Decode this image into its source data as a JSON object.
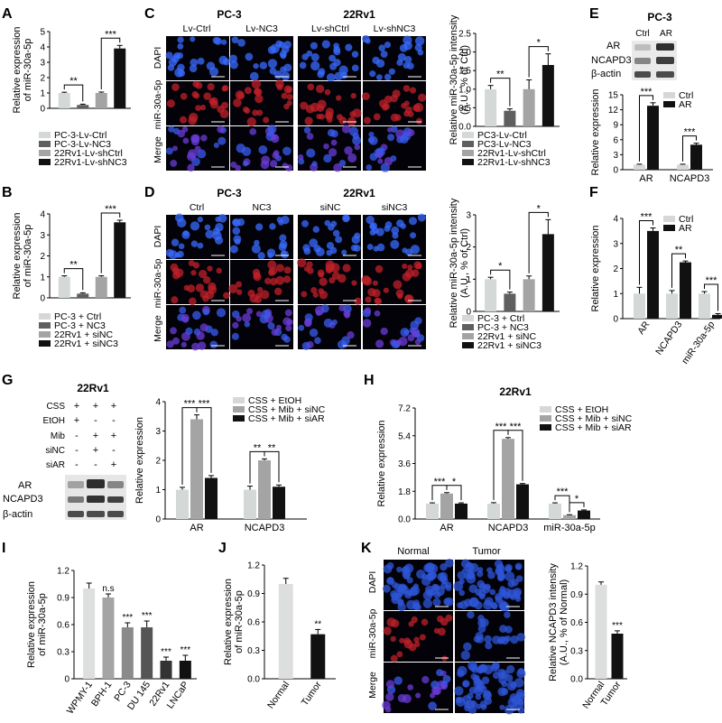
{
  "colors": {
    "ctrl_light": "#d4d8d6",
    "knock_dark": "#5f5f5f",
    "mid_gray": "#a4a4a4",
    "black": "#111111",
    "normal": "#dcdfdd"
  },
  "panels": {
    "A": {
      "label": "A"
    },
    "B": {
      "label": "B"
    },
    "C": {
      "label": "C",
      "cell_lines": [
        "PC-3",
        "22Rv1"
      ],
      "columns": [
        "Lv-Ctrl",
        "Lv-NC3",
        "Lv-shCtrl",
        "Lv-shNC3"
      ],
      "rows": [
        "DAPI",
        "miR-30a-5p",
        "Merge"
      ]
    },
    "D": {
      "label": "D",
      "cell_lines": [
        "PC-3",
        "22Rv1"
      ],
      "columns": [
        "Ctrl",
        "NC3",
        "siNC",
        "siNC3"
      ],
      "rows": [
        "DAPI",
        "miR-30a-5p",
        "Merge"
      ]
    },
    "E": {
      "label": "E",
      "cell_line": "PC-3",
      "blot_lanes": [
        "Ctrl",
        "AR"
      ],
      "blot_rows": [
        "AR",
        "NCAPD3",
        "β-actin"
      ]
    },
    "F": {
      "label": "F"
    },
    "G": {
      "label": "G",
      "cell_line": "22Rv1",
      "treatments": [
        {
          "name": "CSS",
          "signs": [
            "+",
            "+",
            "+"
          ]
        },
        {
          "name": "EtOH",
          "signs": [
            "+",
            "-",
            "-"
          ]
        },
        {
          "name": "Mib",
          "signs": [
            "-",
            "+",
            "+"
          ]
        },
        {
          "name": "siNC",
          "signs": [
            "-",
            "+",
            "-"
          ]
        },
        {
          "name": "siAR",
          "signs": [
            "-",
            "-",
            "+"
          ]
        }
      ],
      "blot_rows": [
        "AR",
        "NCAPD3",
        "β-actin"
      ]
    },
    "H": {
      "label": "H",
      "cell_line": "22Rv1"
    },
    "I": {
      "label": "I"
    },
    "J": {
      "label": "J"
    },
    "K": {
      "label": "K",
      "columns": [
        "Normal",
        "Tumor"
      ],
      "rows": [
        "DAPI",
        "miR-30a-5p",
        "Merge"
      ]
    }
  },
  "chart_data": [
    {
      "id": "A",
      "type": "bar",
      "ylabel": "Relative expression\nof miR-30a-5p",
      "ylim": [
        0,
        5
      ],
      "yticks": [
        0,
        1,
        2,
        3,
        4,
        5
      ],
      "categories": [
        "PC-3-Lv-Ctrl",
        "PC-3-Lv-NC3",
        "22Rv1-Lv-shCtrl",
        "22Rv1-Lv-shNC3"
      ],
      "values": [
        1.0,
        0.22,
        1.0,
        3.9
      ],
      "errors": [
        0.05,
        0.05,
        0.06,
        0.2
      ],
      "colors": [
        "#d4d8d6",
        "#5f5f5f",
        "#a4a4a4",
        "#111111"
      ],
      "legend": [
        "PC-3-Lv-Ctrl",
        "PC-3-Lv-NC3",
        "22Rv1-Lv-shCtrl",
        "22Rv1-Lv-shNC3"
      ],
      "significance": [
        {
          "bars": [
            0,
            1
          ],
          "label": "**"
        },
        {
          "bars": [
            2,
            3
          ],
          "label": "***"
        }
      ]
    },
    {
      "id": "B",
      "type": "bar",
      "ylabel": "Relative expression\nof miR-30a-5p",
      "ylim": [
        0,
        4
      ],
      "yticks": [
        0,
        1,
        2,
        3,
        4
      ],
      "categories": [
        "PC-3 + Ctrl",
        "PC-3 + NC3",
        "22Rv1 + siNC",
        "22Rv1 + siNC3"
      ],
      "values": [
        1.0,
        0.2,
        1.0,
        3.6
      ],
      "errors": [
        0.05,
        0.04,
        0.05,
        0.1
      ],
      "colors": [
        "#d4d8d6",
        "#5f5f5f",
        "#a4a4a4",
        "#111111"
      ],
      "legend": [
        "PC-3 + Ctrl",
        "PC-3 + NC3",
        "22Rv1 + siNC",
        "22Rv1 + siNC3"
      ],
      "significance": [
        {
          "bars": [
            0,
            1
          ],
          "label": "**"
        },
        {
          "bars": [
            2,
            3
          ],
          "label": "***"
        }
      ]
    },
    {
      "id": "C",
      "type": "bar",
      "ylabel": "Relative miR-30a-5p intensity\n(A.U., % of Ctrl)",
      "ylim": [
        0,
        2.5
      ],
      "yticks": [
        0.0,
        0.5,
        1.0,
        1.5,
        2.0,
        2.5
      ],
      "categories": [
        "PC3-Lv-Ctrl",
        "PC3-Lv-NC3",
        "22Rv1-Lv-shCtrl",
        "22Rv1-Lv-shNC3"
      ],
      "values": [
        1.0,
        0.42,
        1.0,
        1.65
      ],
      "errors": [
        0.1,
        0.05,
        0.25,
        0.3
      ],
      "colors": [
        "#d4d8d6",
        "#5f5f5f",
        "#a4a4a4",
        "#111111"
      ],
      "legend": [
        "PC3-Lv-Ctrl",
        "PC3-Lv-NC3",
        "22Rv1-Lv-shCtrl",
        "22Rv1-Lv-shNC3"
      ],
      "significance": [
        {
          "bars": [
            0,
            1
          ],
          "label": "**"
        },
        {
          "bars": [
            2,
            3
          ],
          "label": "*"
        }
      ]
    },
    {
      "id": "D",
      "type": "bar",
      "ylabel": "Relative miR-30a-5p intensity\n(A.U., % of Ctrl)",
      "ylim": [
        0,
        3
      ],
      "yticks": [
        0,
        1,
        2,
        3
      ],
      "categories": [
        "PC-3 + Ctrl",
        "PC-3 + NC3",
        "22Rv1 + siNC",
        "22Rv1 + siNC3"
      ],
      "values": [
        1.0,
        0.55,
        1.0,
        2.4
      ],
      "errors": [
        0.06,
        0.05,
        0.1,
        0.45
      ],
      "colors": [
        "#d4d8d6",
        "#5f5f5f",
        "#a4a4a4",
        "#111111"
      ],
      "legend": [
        "PC-3 + Ctrl",
        "PC-3 + NC3",
        "22Rv1 + siNC",
        "22Rv1 + siNC3"
      ],
      "significance": [
        {
          "bars": [
            0,
            1
          ],
          "label": "*"
        },
        {
          "bars": [
            2,
            3
          ],
          "label": "*"
        }
      ]
    },
    {
      "id": "E",
      "type": "bar",
      "ylabel": "Relative expression",
      "ylim": [
        0,
        15
      ],
      "yticks": [
        0,
        3,
        6,
        9,
        12,
        15
      ],
      "categories": [
        "AR",
        "NCAPD3"
      ],
      "series": [
        {
          "name": "Ctrl",
          "values": [
            1.0,
            1.0
          ],
          "errors": [
            0.1,
            0.1
          ],
          "color": "#d4d8d6"
        },
        {
          "name": "AR",
          "values": [
            12.8,
            5.0
          ],
          "errors": [
            0.6,
            0.3
          ],
          "color": "#111111"
        }
      ],
      "significance": [
        {
          "group": 0,
          "label": "***"
        },
        {
          "group": 1,
          "label": "***"
        }
      ]
    },
    {
      "id": "F",
      "type": "bar",
      "ylabel": "Relative expression",
      "ylim": [
        0,
        4
      ],
      "yticks": [
        0,
        1,
        2,
        3,
        4
      ],
      "categories": [
        "AR",
        "NCAPD3",
        "miR-30a-5p"
      ],
      "series": [
        {
          "name": "Ctrl",
          "values": [
            1.0,
            1.0,
            1.0
          ],
          "errors": [
            0.25,
            0.12,
            0.08
          ],
          "color": "#d4d8d6"
        },
        {
          "name": "AR",
          "values": [
            3.5,
            2.25,
            0.15
          ],
          "errors": [
            0.12,
            0.05,
            0.05
          ],
          "color": "#111111"
        }
      ],
      "significance": [
        {
          "group": 0,
          "label": "***"
        },
        {
          "group": 1,
          "label": "**"
        },
        {
          "group": 2,
          "label": "***"
        }
      ]
    },
    {
      "id": "G",
      "type": "bar",
      "ylabel": "Relative expression",
      "ylim": [
        0,
        4
      ],
      "yticks": [
        0,
        1,
        2,
        3,
        4
      ],
      "categories": [
        "AR",
        "NCAPD3"
      ],
      "series": [
        {
          "name": "CSS + EtOH",
          "values": [
            1.0,
            1.0
          ],
          "errors": [
            0.08,
            0.12
          ],
          "color": "#d4d8d6"
        },
        {
          "name": "CSS + Mib + siNC",
          "values": [
            3.4,
            2.0
          ],
          "errors": [
            0.15,
            0.05
          ],
          "color": "#a4a4a4"
        },
        {
          "name": "CSS + Mib + siAR",
          "values": [
            1.4,
            1.1
          ],
          "errors": [
            0.08,
            0.06
          ],
          "color": "#111111"
        }
      ],
      "significance": [
        {
          "group": 0,
          "pair": [
            0,
            1
          ],
          "label": "***"
        },
        {
          "group": 0,
          "pair": [
            1,
            2
          ],
          "label": "***"
        },
        {
          "group": 1,
          "pair": [
            0,
            1
          ],
          "label": "**"
        },
        {
          "group": 1,
          "pair": [
            1,
            2
          ],
          "label": "**"
        }
      ]
    },
    {
      "id": "H",
      "type": "bar",
      "ylabel": "Relative expression",
      "ylim": [
        0,
        7.2
      ],
      "yticks": [
        0.0,
        1.8,
        3.6,
        5.4,
        7.2
      ],
      "categories": [
        "AR",
        "NCAPD3",
        "miR-30a-5p"
      ],
      "series": [
        {
          "name": "CSS + EtOH",
          "values": [
            1.0,
            1.0,
            1.0
          ],
          "errors": [
            0.05,
            0.06,
            0.05
          ],
          "color": "#d4d8d6"
        },
        {
          "name": "CSS + Mib + siNC",
          "values": [
            1.65,
            5.2,
            0.25
          ],
          "errors": [
            0.06,
            0.08,
            0.03
          ],
          "color": "#a4a4a4"
        },
        {
          "name": "CSS + Mib + siAR",
          "values": [
            1.0,
            2.25,
            0.55
          ],
          "errors": [
            0.05,
            0.05,
            0.04
          ],
          "color": "#111111"
        }
      ],
      "significance": [
        {
          "group": 0,
          "pair": [
            0,
            1
          ],
          "label": "***"
        },
        {
          "group": 0,
          "pair": [
            1,
            2
          ],
          "label": "*"
        },
        {
          "group": 1,
          "pair": [
            0,
            1
          ],
          "label": "***"
        },
        {
          "group": 1,
          "pair": [
            1,
            2
          ],
          "label": "***"
        },
        {
          "group": 2,
          "pair": [
            0,
            1
          ],
          "label": "***"
        },
        {
          "group": 2,
          "pair": [
            1,
            2
          ],
          "label": "*"
        }
      ]
    },
    {
      "id": "I",
      "type": "bar",
      "ylabel": "Relative expression\nof miR-30a-5p",
      "ylim": [
        0,
        1.2
      ],
      "yticks": [
        0,
        0.3,
        0.6,
        0.9,
        1.2
      ],
      "categories": [
        "WPMY-1",
        "BPH-1",
        "PC-3",
        "DU 145",
        "22Rv1",
        "LNCaP"
      ],
      "values": [
        1.0,
        0.9,
        0.57,
        0.57,
        0.2,
        0.2
      ],
      "errors": [
        0.06,
        0.04,
        0.05,
        0.07,
        0.04,
        0.06
      ],
      "colors": [
        "#dcdfdd",
        "#a4a4a4",
        "#8a8a8a",
        "#555555",
        "#333333",
        "#111111"
      ],
      "annotations": [
        "",
        "n.s",
        "***",
        "***",
        "***",
        "***"
      ]
    },
    {
      "id": "J",
      "type": "bar",
      "ylabel": "Relative expression\nof miR-30a-5p",
      "ylim": [
        0,
        1.2
      ],
      "yticks": [
        0.0,
        0.3,
        0.6,
        0.9,
        1.2
      ],
      "categories": [
        "Normal",
        "Tumor"
      ],
      "values": [
        1.0,
        0.47
      ],
      "errors": [
        0.06,
        0.05
      ],
      "colors": [
        "#dcdfdd",
        "#111111"
      ],
      "annotations": [
        "",
        "**"
      ]
    },
    {
      "id": "K",
      "type": "bar",
      "ylabel": "Relative NCAPD3 intensity\n(A.U., % of Normal)",
      "ylim": [
        0,
        1.2
      ],
      "yticks": [
        0.0,
        0.3,
        0.6,
        0.9,
        1.2
      ],
      "categories": [
        "Normal",
        "Tumor"
      ],
      "values": [
        1.0,
        0.48
      ],
      "errors": [
        0.03,
        0.03
      ],
      "colors": [
        "#dcdfdd",
        "#111111"
      ],
      "annotations": [
        "",
        "***"
      ]
    }
  ]
}
